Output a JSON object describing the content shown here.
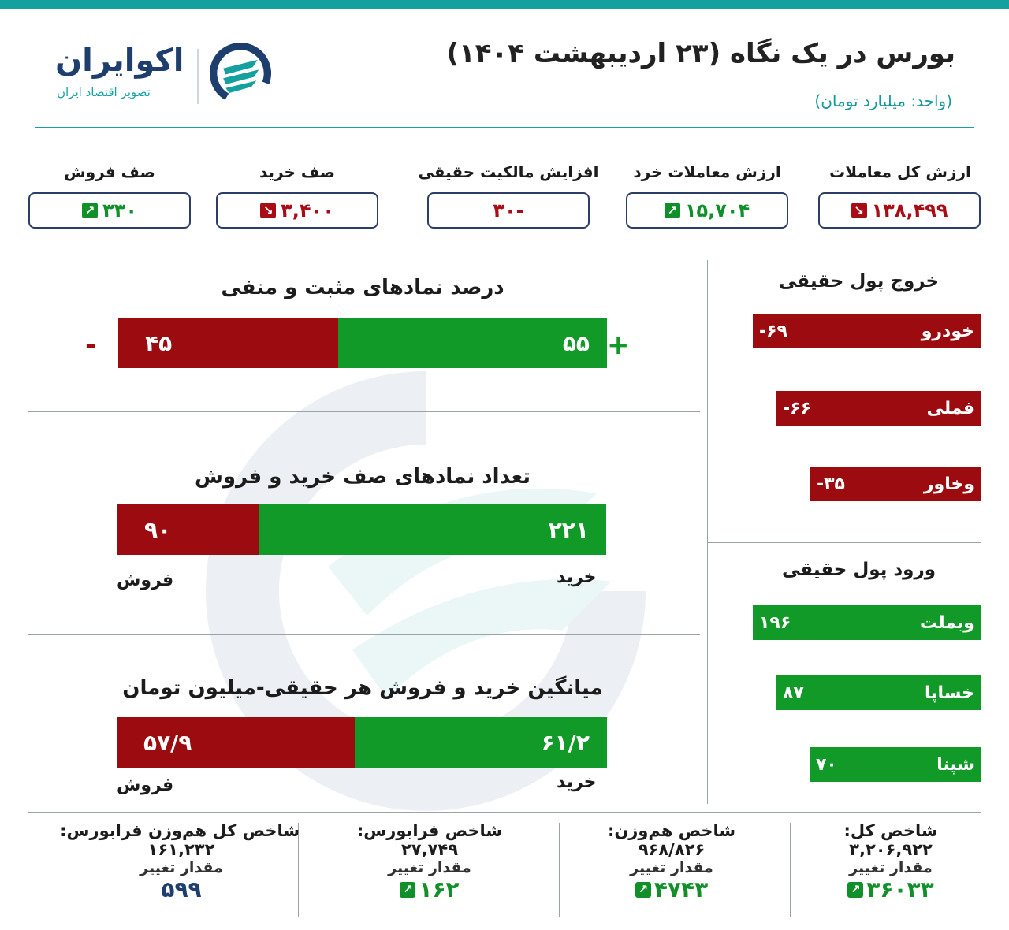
{
  "header": {
    "title": "بورس در یک نگاه (۲۳ اردیبهشت ۱۴۰۴)",
    "unit": "(واحد: میلیارد تومان)",
    "brand_name": "اکوایران",
    "brand_tagline": "تصویر اقتصاد ایران"
  },
  "stats": [
    {
      "label": "ارزش کل معاملات",
      "value": "۱۳۸,۴۹۹",
      "trend": "down"
    },
    {
      "label": "ارزش معاملات خرد",
      "value": "۱۵,۷۰۴",
      "trend": "up"
    },
    {
      "label": "افزایش مالکیت حقیقی",
      "value": "-۳۰",
      "trend": "none"
    },
    {
      "label": "صف خرید",
      "value": "۳,۴۰۰",
      "trend": "down"
    },
    {
      "label": "صف فروش",
      "value": "۳۳۰",
      "trend": "up"
    }
  ],
  "positive_negative": {
    "title": "درصد نمادهای مثبت و منفی",
    "positive": 55,
    "negative": 45,
    "positive_label": "۵۵",
    "negative_label": "۴۵",
    "plus_sign": "+",
    "minus_sign": "-"
  },
  "queues": {
    "title": "تعداد نمادهای صف خرید و فروش",
    "buy": 221,
    "sell": 90,
    "buy_label": "۲۲۱",
    "sell_label": "۹۰",
    "buy_caption": "خرید",
    "sell_caption": "فروش"
  },
  "avg_trade": {
    "title": "میانگین خرید و فروش هر حقیقی-میلیون تومان",
    "buy": 61.2,
    "sell": 57.9,
    "buy_label": "۶۱/۲",
    "sell_label": "۵۷/۹",
    "buy_caption": "خرید",
    "sell_caption": "فروش"
  },
  "outflow": {
    "title": "خروج پول حقیقی",
    "items": [
      {
        "name": "خودرو",
        "value": -69,
        "label": "-۶۹"
      },
      {
        "name": "فملی",
        "value": -66,
        "label": "-۶۶"
      },
      {
        "name": "وخاور",
        "value": -35,
        "label": "-۳۵"
      }
    ]
  },
  "inflow": {
    "title": "ورود پول حقیقی",
    "items": [
      {
        "name": "وبملت",
        "value": 196,
        "label": "۱۹۶"
      },
      {
        "name": "خساپا",
        "value": 87,
        "label": "۸۷"
      },
      {
        "name": "شپنا",
        "value": 70,
        "label": "۷۰"
      }
    ]
  },
  "indices": [
    {
      "name": "شاخص کل:",
      "value": "۳,۲۰۶,۹۲۲",
      "change_label": "مقدار تغییر",
      "change": "۳۶۰۳۳",
      "trend": "up"
    },
    {
      "name": "شاخص هم‌وزن:",
      "value": "۹۶۸/۸۲۶",
      "change_label": "مقدار تغییر",
      "change": "۴۷۴۳",
      "trend": "up"
    },
    {
      "name": "شاخص فرابورس:",
      "value": "۲۷,۷۴۹",
      "change_label": "مقدار تغییر",
      "change": "۱۶۲",
      "trend": "up"
    },
    {
      "name": "شاخص کل هم‌وزن فرابورس:",
      "value": "۱۶۱,۲۳۲",
      "change_label": "مقدار تغییر",
      "change": "۵۹۹",
      "trend": "none"
    }
  ],
  "colors": {
    "accent": "#15a0a0",
    "positive": "#129a28",
    "negative": "#9b0b10",
    "brand": "#1e3f6e"
  }
}
